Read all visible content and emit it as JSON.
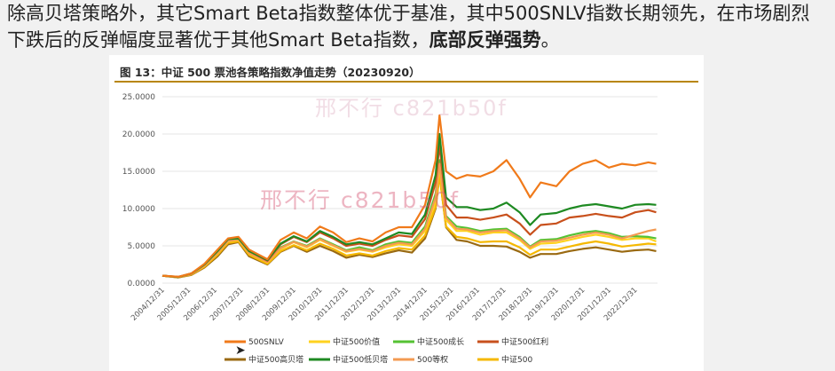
{
  "headline": {
    "part1": "除高贝塔策略外，其它Smart Beta指数整体优于基准，其中500SNLV指数长期领先，在市场剧烈下跌后的反弹幅度显著优于其他Smart Beta指数，",
    "bold": "底部反弹强势",
    "end": "。"
  },
  "watermark": "邢不行 c821b50f",
  "chart_data": {
    "type": "line",
    "title": "图 13：中证 500 票池各策略指数净值走势（20230920）",
    "xlabel": "",
    "ylabel": "",
    "ylim": [
      0,
      25
    ],
    "yticks": [
      "0.0000",
      "5.0000",
      "10.0000",
      "15.0000",
      "20.0000",
      "25.0000"
    ],
    "xticks": [
      "2004/12/31",
      "2005/12/31",
      "2006/12/31",
      "2007/12/31",
      "2008/12/31",
      "2009/12/31",
      "2010/12/31",
      "2011/12/31",
      "2012/12/31",
      "2013/12/31",
      "2014/12/31",
      "2015/12/31",
      "2016/12/31",
      "2017/12/31",
      "2018/12/31",
      "2019/12/31",
      "2020/12/31",
      "2021/12/31",
      "2022/12/31"
    ],
    "x": [
      2004.9,
      2005.5,
      2006.0,
      2006.5,
      2007.0,
      2007.4,
      2007.8,
      2008.2,
      2008.9,
      2009.4,
      2009.9,
      2010.4,
      2010.9,
      2011.4,
      2011.9,
      2012.4,
      2012.9,
      2013.4,
      2013.9,
      2014.4,
      2014.9,
      2015.3,
      2015.45,
      2015.7,
      2016.1,
      2016.5,
      2017.0,
      2017.5,
      2018.0,
      2018.5,
      2018.9,
      2019.3,
      2019.9,
      2020.4,
      2020.9,
      2021.4,
      2021.9,
      2022.4,
      2022.9,
      2023.4,
      2023.7
    ],
    "legend_position": "bottom",
    "series": [
      {
        "name": "500SNLV",
        "color": "#f07a1a",
        "values": [
          1.0,
          0.85,
          1.3,
          2.6,
          4.5,
          6.0,
          6.2,
          4.5,
          3.2,
          5.8,
          6.8,
          6.0,
          7.6,
          6.8,
          5.5,
          6.0,
          5.6,
          6.8,
          7.5,
          7.5,
          10.5,
          16.5,
          22.5,
          15.0,
          14.0,
          14.5,
          14.3,
          15.0,
          16.5,
          14.0,
          11.5,
          13.5,
          13.0,
          15.0,
          16.0,
          16.5,
          15.5,
          16.0,
          15.8,
          16.2,
          16.0
        ]
      },
      {
        "name": "中证500价值",
        "color": "#ffd21f",
        "values": [
          1.0,
          0.8,
          1.2,
          2.3,
          4.0,
          5.6,
          5.8,
          4.0,
          2.8,
          4.6,
          5.5,
          4.8,
          5.8,
          5.0,
          4.2,
          4.5,
          4.2,
          4.8,
          5.2,
          5.0,
          7.0,
          11.0,
          15.5,
          8.5,
          7.0,
          7.0,
          6.5,
          6.8,
          6.8,
          5.8,
          4.6,
          5.3,
          5.4,
          5.8,
          6.2,
          6.5,
          6.2,
          5.8,
          6.0,
          6.0,
          5.6
        ]
      },
      {
        "name": "中证500成长",
        "color": "#55c233",
        "values": [
          1.0,
          0.8,
          1.25,
          2.4,
          4.1,
          5.7,
          5.9,
          4.1,
          2.9,
          4.8,
          5.6,
          5.0,
          6.0,
          5.2,
          4.4,
          4.8,
          4.4,
          5.2,
          5.6,
          5.4,
          7.6,
          12.0,
          16.5,
          9.0,
          7.6,
          7.4,
          7.0,
          7.2,
          7.3,
          6.2,
          4.9,
          5.8,
          5.9,
          6.4,
          6.8,
          7.0,
          6.7,
          6.2,
          6.3,
          6.2,
          6.0
        ]
      },
      {
        "name": "中证500红利",
        "color": "#c8501c",
        "values": [
          1.0,
          0.85,
          1.3,
          2.5,
          4.4,
          5.9,
          6.1,
          4.3,
          3.0,
          5.2,
          6.2,
          5.5,
          6.8,
          6.0,
          5.0,
          5.3,
          5.0,
          5.8,
          6.4,
          6.2,
          8.6,
          13.5,
          18.5,
          10.5,
          8.8,
          8.8,
          8.5,
          8.8,
          9.2,
          8.0,
          6.5,
          7.8,
          8.0,
          8.8,
          9.0,
          9.3,
          9.0,
          8.8,
          9.5,
          9.8,
          9.5
        ]
      },
      {
        "name": "中证500高贝塔",
        "color": "#9a6a12",
        "values": [
          1.0,
          0.75,
          1.1,
          2.1,
          3.6,
          5.2,
          5.5,
          3.6,
          2.5,
          4.2,
          5.0,
          4.2,
          5.0,
          4.3,
          3.4,
          3.8,
          3.5,
          4.0,
          4.4,
          4.1,
          6.0,
          10.0,
          14.5,
          7.5,
          5.8,
          5.6,
          5.0,
          5.0,
          4.9,
          4.2,
          3.4,
          3.9,
          3.9,
          4.3,
          4.6,
          4.8,
          4.5,
          4.2,
          4.4,
          4.5,
          4.3
        ]
      },
      {
        "name": "中证500低贝塔",
        "color": "#1e8a22",
        "values": [
          1.0,
          0.82,
          1.28,
          2.5,
          4.3,
          5.9,
          6.0,
          4.3,
          3.1,
          5.3,
          6.3,
          5.6,
          7.0,
          6.2,
          5.2,
          5.5,
          5.2,
          6.0,
          6.8,
          6.6,
          9.2,
          14.5,
          20.0,
          11.5,
          10.2,
          10.2,
          9.8,
          10.0,
          10.8,
          9.5,
          7.8,
          9.2,
          9.4,
          10.0,
          10.4,
          10.6,
          10.3,
          10.0,
          10.5,
          10.6,
          10.5
        ]
      },
      {
        "name": "500等权",
        "color": "#f39a52",
        "values": [
          1.0,
          0.8,
          1.22,
          2.35,
          4.05,
          5.65,
          5.85,
          4.05,
          2.85,
          4.7,
          5.55,
          4.9,
          5.9,
          5.1,
          4.3,
          4.6,
          4.3,
          5.0,
          5.4,
          5.2,
          7.3,
          11.5,
          16.0,
          8.8,
          7.3,
          7.2,
          6.8,
          7.0,
          7.1,
          6.0,
          4.8,
          5.6,
          5.7,
          6.1,
          6.5,
          6.8,
          6.5,
          6.0,
          6.5,
          7.0,
          7.2
        ]
      },
      {
        "name": "中证500",
        "color": "#f5b800",
        "values": [
          1.0,
          0.78,
          1.15,
          2.2,
          3.8,
          5.4,
          5.6,
          3.8,
          2.6,
          4.3,
          5.1,
          4.4,
          5.3,
          4.6,
          3.7,
          4.0,
          3.7,
          4.3,
          4.7,
          4.5,
          6.4,
          10.2,
          14.5,
          7.6,
          6.2,
          6.0,
          5.5,
          5.6,
          5.6,
          4.8,
          3.8,
          4.5,
          4.5,
          4.9,
          5.3,
          5.6,
          5.3,
          4.9,
          5.1,
          5.3,
          5.2
        ]
      }
    ]
  }
}
